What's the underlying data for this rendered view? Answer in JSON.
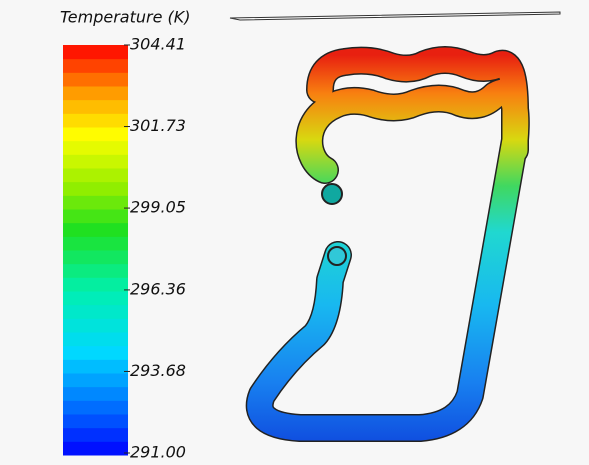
{
  "legend": {
    "title": "Temperature (K)",
    "ticks": [
      {
        "value": 304.41,
        "label": "304.41"
      },
      {
        "value": 301.73,
        "label": "301.73"
      },
      {
        "value": 299.05,
        "label": "299.05"
      },
      {
        "value": 296.36,
        "label": "296.36"
      },
      {
        "value": 293.68,
        "label": "293.68"
      },
      {
        "value": 291,
        "label": "291.00"
      }
    ]
  }
}
